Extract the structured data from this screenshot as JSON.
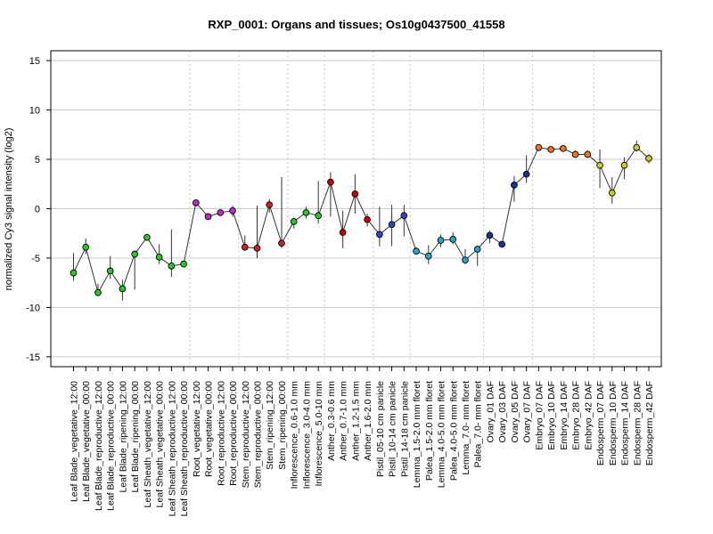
{
  "chart_data": {
    "type": "line",
    "title": "RXP_0001: Organs and tissues; Os10g0437500_41558",
    "xlabel": "",
    "ylabel": "normalized Cy3 signal intensity (log2)",
    "ylim": [
      -16,
      16
    ],
    "yticks": [
      -15,
      -10,
      -5,
      0,
      5,
      10,
      15
    ],
    "grid": {
      "horizontal": true,
      "vertical": "dotted"
    },
    "legend": "none",
    "categories": [
      "Leaf Blade_vegetative_12:00",
      "Leaf Blade_vegetative_00:00",
      "Leaf Blade_reproductive_12:00",
      "Leaf Blade_reproductive_00:00",
      "Leaf Blade_ripening_12:00",
      "Leaf Blade_ripening_00:00",
      "Leaf Sheath_vegetative_12:00",
      "Leaf Sheath_vegetative_00:00",
      "Leaf Sheath_reproductive_12:00",
      "Leaf Sheath_reproductive_00:00",
      "Root_vegetative_12:00",
      "Root_vegetative_00:00",
      "Root_reproductive_12:00",
      "Root_reproductive_00:00",
      "Stem_reproductive_12:00",
      "Stem_reproductive_00:00",
      "Stem_ripening_12:00",
      "Stem_ripening_00:00",
      "Inflorescence_0.6-1.0 mm",
      "Inflorescence_3.0-4.0 mm",
      "Inflorescence_5.0-10 mm",
      "Anther_0.3-0.6 mm",
      "Anther_0.7-1.0 mm",
      "Anther_1.2-1.5 mm",
      "Anther_1.6-2.0 mm",
      "Pistil_05-10 cm panicle",
      "Pistil_10-14 cm panicle",
      "Pistil_14-18 cm panicle",
      "Lemma_1.5-2.0 mm floret",
      "Palea_1.5-2.0 mm floret",
      "Lemma_4.0-5.0 mm floret",
      "Palea_4.0-5.0 mm floret",
      "Lemma_7.0- mm floret",
      "Palea_7.0- mm floret",
      "Ovary_01 DAF",
      "Ovary_03 DAF",
      "Ovary_05 DAF",
      "Ovary_07 DAF",
      "Embryo_07 DAF",
      "Embryo_10 DAF",
      "Embryo_14 DAF",
      "Embryo_28 DAF",
      "Embryo_42 DAF",
      "Endosperm_07 DAF",
      "Endosperm_10 DAF",
      "Endosperm_14 DAF",
      "Endosperm_28 DAF",
      "Endosperm_42 DAF"
    ],
    "values": [
      -6.5,
      -3.9,
      -8.5,
      -6.3,
      -8.1,
      -4.6,
      -2.9,
      -4.9,
      -5.8,
      -5.6,
      0.6,
      -0.8,
      -0.4,
      -0.2,
      -3.9,
      -4.0,
      0.4,
      -3.5,
      -1.3,
      -0.4,
      -0.7,
      2.7,
      -2.4,
      1.5,
      -1.1,
      -2.6,
      -1.6,
      -0.7,
      -4.3,
      -4.8,
      -3.2,
      -3.1,
      -5.2,
      -4.1,
      -2.7,
      -3.6,
      2.4,
      3.5,
      6.2,
      6.0,
      6.1,
      5.5,
      5.5,
      4.4,
      1.6,
      4.4,
      6.2,
      5.1
    ],
    "error_low": [
      -7.3,
      -4.6,
      -8.8,
      -7.1,
      -9.3,
      -8.2,
      -3.0,
      -5.6,
      -6.9,
      -5.7,
      0.5,
      -0.9,
      -0.5,
      -0.8,
      -4.1,
      -5.0,
      -0.4,
      -4.0,
      -2.0,
      -1.0,
      -1.5,
      -0.8,
      -4.0,
      -0.5,
      -1.8,
      -3.8,
      -3.8,
      -2.8,
      -4.6,
      -5.6,
      -3.9,
      -3.6,
      -5.6,
      -5.8,
      -3.5,
      -3.8,
      0.7,
      2.6,
      6.1,
      5.9,
      5.9,
      5.2,
      5.2,
      2.1,
      0.5,
      3.0,
      5.8,
      4.6
    ],
    "error_high": [
      -4.5,
      -3.0,
      -7.6,
      -4.8,
      -7.2,
      -4.4,
      -2.8,
      -3.6,
      -2.1,
      -5.5,
      0.7,
      -0.7,
      -0.3,
      0.3,
      -2.7,
      0.3,
      1.0,
      3.2,
      -0.9,
      0.2,
      2.8,
      3.7,
      -0.2,
      3.5,
      -0.5,
      0.2,
      0.4,
      0.4,
      -3.9,
      -3.7,
      -2.6,
      -2.4,
      -4.1,
      -3.9,
      -2.2,
      -3.4,
      3.3,
      5.4,
      6.3,
      6.2,
      6.3,
      5.9,
      5.9,
      6.0,
      3.2,
      5.2,
      6.9,
      5.5
    ],
    "point_colors": [
      "#22cc22",
      "#22cc22",
      "#22cc22",
      "#22cc22",
      "#22cc22",
      "#22cc22",
      "#22cc22",
      "#22cc22",
      "#22cc22",
      "#22cc22",
      "#cc22cc",
      "#cc22cc",
      "#cc22cc",
      "#cc22cc",
      "#cc2222",
      "#cc2222",
      "#cc2222",
      "#cc2222",
      "#22cc22",
      "#22cc22",
      "#22cc22",
      "#cc0000",
      "#cc0000",
      "#cc0000",
      "#cc0000",
      "#3344cc",
      "#3344cc",
      "#3344cc",
      "#22aacc",
      "#22aacc",
      "#22aacc",
      "#22aacc",
      "#22aacc",
      "#22aacc",
      "#1133aa",
      "#1133aa",
      "#1133aa",
      "#1133aa",
      "#ee7722",
      "#ee7722",
      "#ee7722",
      "#ee7722",
      "#ee7722",
      "#cccc22",
      "#cccc22",
      "#cccc22",
      "#cccc22",
      "#cccc22"
    ],
    "group_separators_after_index": [
      9,
      13,
      17,
      20,
      24,
      27,
      33,
      37,
      42
    ]
  }
}
